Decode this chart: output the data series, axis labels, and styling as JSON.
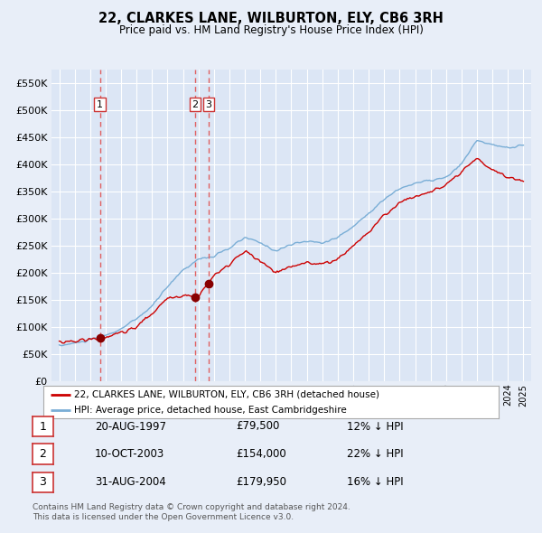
{
  "title": "22, CLARKES LANE, WILBURTON, ELY, CB6 3RH",
  "subtitle": "Price paid vs. HM Land Registry's House Price Index (HPI)",
  "legend_label_red": "22, CLARKES LANE, WILBURTON, ELY, CB6 3RH (detached house)",
  "legend_label_blue": "HPI: Average price, detached house, East Cambridgeshire",
  "footer1": "Contains HM Land Registry data © Crown copyright and database right 2024.",
  "footer2": "This data is licensed under the Open Government Licence v3.0.",
  "sales": [
    {
      "label": "1",
      "date": "20-AUG-1997",
      "price": 79500,
      "x_year": 1997.63
    },
    {
      "label": "2",
      "date": "10-OCT-2003",
      "price": 154000,
      "x_year": 2003.78
    },
    {
      "label": "3",
      "date": "31-AUG-2004",
      "price": 179950,
      "x_year": 2004.66
    }
  ],
  "table_rows": [
    {
      "num": "1",
      "date": "20-AUG-1997",
      "price": "£79,500",
      "pct": "12% ↓ HPI"
    },
    {
      "num": "2",
      "date": "10-OCT-2003",
      "price": "£154,000",
      "pct": "22% ↓ HPI"
    },
    {
      "num": "3",
      "date": "31-AUG-2004",
      "price": "£179,950",
      "pct": "16% ↓ HPI"
    }
  ],
  "ylim": [
    0,
    575000
  ],
  "xlim_left": 1994.5,
  "xlim_right": 2025.5,
  "yticks": [
    0,
    50000,
    100000,
    150000,
    200000,
    250000,
    300000,
    350000,
    400000,
    450000,
    500000,
    550000
  ],
  "ytick_labels": [
    "£0",
    "£50K",
    "£100K",
    "£150K",
    "£200K",
    "£250K",
    "£300K",
    "£350K",
    "£400K",
    "£450K",
    "£500K",
    "£550K"
  ],
  "background_color": "#e8eef8",
  "plot_bg": "#dce6f5",
  "grid_color": "#ffffff",
  "red_line_color": "#cc0000",
  "blue_line_color": "#7aaed6",
  "dashed_color": "#e06060",
  "dot_color": "#880000",
  "box_edge_color": "#cc3333",
  "legend_border_color": "#aaaaaa",
  "footer_color": "#555555"
}
